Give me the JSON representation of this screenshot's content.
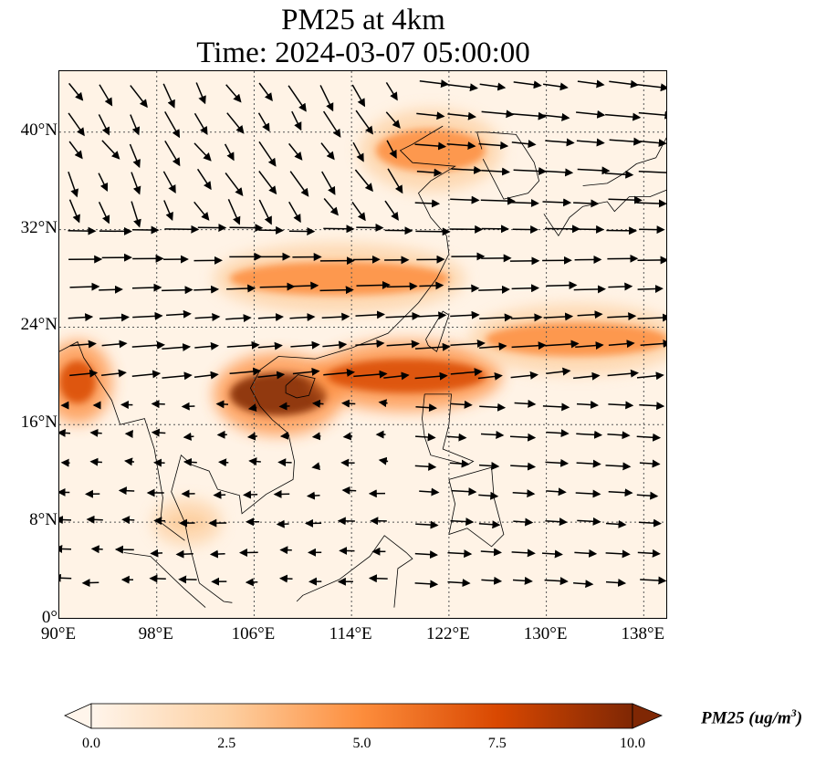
{
  "title": {
    "line1": "PM25 at 4km",
    "line2": "Time: 2024-03-07 05:00:00"
  },
  "axes": {
    "lat_ticks": [
      "40°N",
      "32°N",
      "24°N",
      "16°N",
      "8°N",
      "0°"
    ],
    "lon_ticks": [
      "90°E",
      "98°E",
      "106°E",
      "114°E",
      "122°E",
      "130°E",
      "138°E"
    ],
    "lat_range": [
      0,
      45
    ],
    "lon_range": [
      90,
      140
    ]
  },
  "colorbar": {
    "label_text": "PM25 (ug/m",
    "label_sup": "3",
    "label_close": ")",
    "ticks": [
      "0.0",
      "2.5",
      "5.0",
      "7.5",
      "10.0"
    ],
    "range": [
      0,
      10
    ],
    "colors": [
      "#fff5eb",
      "#fdd0a2",
      "#fd8d3c",
      "#d94801",
      "#7f2704"
    ]
  },
  "colors": {
    "grid": "#555555",
    "coast": "#000000"
  },
  "chart_data": {
    "type": "heatmap",
    "title": "PM25 at 4km\nTime: 2024-03-07 05:00:00",
    "variable": "PM25",
    "units": "ug/m3",
    "value_range": [
      0,
      10
    ],
    "colormap": "OrRd-like (white to dark red)",
    "extend": "both",
    "overlay": "wind vectors",
    "plumes": [
      {
        "region": "Gulf of Tonkin / Hainan",
        "lon": [
          104,
          112
        ],
        "lat": [
          16,
          21
        ],
        "level": 9.5
      },
      {
        "region": "South China Sea band toward Taiwan",
        "lon": [
          112,
          125
        ],
        "lat": [
          18,
          22
        ],
        "level": 8
      },
      {
        "region": "Band east of Taiwan over Pacific",
        "lon": [
          125,
          140
        ],
        "lat": [
          21,
          25
        ],
        "level": 5
      },
      {
        "region": "Southern China band",
        "lon": [
          104,
          122
        ],
        "lat": [
          26,
          30
        ],
        "level": 6
      },
      {
        "region": "Bay of Bengal west edge",
        "lon": [
          90,
          93
        ],
        "lat": [
          17,
          22
        ],
        "level": 7
      },
      {
        "region": "North China Plain",
        "lon": [
          116,
          125
        ],
        "lat": [
          36,
          41
        ],
        "level": 4
      },
      {
        "region": "Gulf of Thailand",
        "lon": [
          99,
          102
        ],
        "lat": [
          7,
          9
        ],
        "level": 3
      }
    ]
  }
}
